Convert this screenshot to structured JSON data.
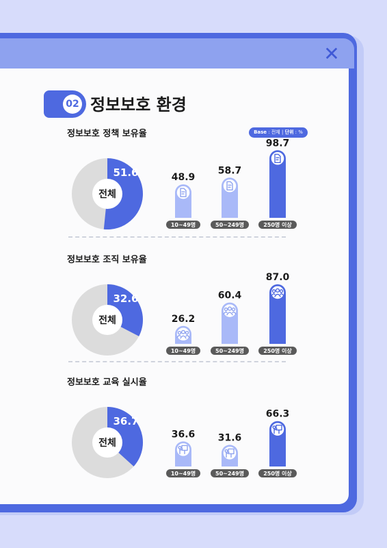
{
  "header": {
    "section_number": "02",
    "title": "정보보호 환경",
    "close_glyph": "✕"
  },
  "base_note": {
    "base_label": "Base",
    "base_value": "전체",
    "unit_label": "단위",
    "unit_value": "%"
  },
  "colors": {
    "accent": "#4e69e0",
    "bar_light": "#a9b9f8",
    "pie_rest": "#dcdcdc",
    "pill": "#5a5a5a"
  },
  "chart_data": [
    {
      "type": "bar",
      "title": "정보보호 정책 보유율",
      "total_label": "전체",
      "total_value": 51.6,
      "categories": [
        "10~49명",
        "50~249명",
        "250명 이상"
      ],
      "values": [
        48.9,
        58.7,
        98.7
      ],
      "icon": "document-icon",
      "ylim": [
        0,
        100
      ]
    },
    {
      "type": "bar",
      "title": "정보보호 조직 보유율",
      "total_label": "전체",
      "total_value": 32.6,
      "categories": [
        "10~49명",
        "50~249명",
        "250명 이상"
      ],
      "values": [
        26.2,
        60.4,
        87.0
      ],
      "icon": "people-group-icon",
      "ylim": [
        0,
        100
      ]
    },
    {
      "type": "bar",
      "title": "정보보호 교육 실시율",
      "total_label": "전체",
      "total_value": 36.7,
      "categories": [
        "10~49명",
        "50~249명",
        "250명 이상"
      ],
      "values": [
        36.6,
        31.6,
        66.3
      ],
      "icon": "presentation-icon",
      "ylim": [
        0,
        100
      ]
    }
  ]
}
